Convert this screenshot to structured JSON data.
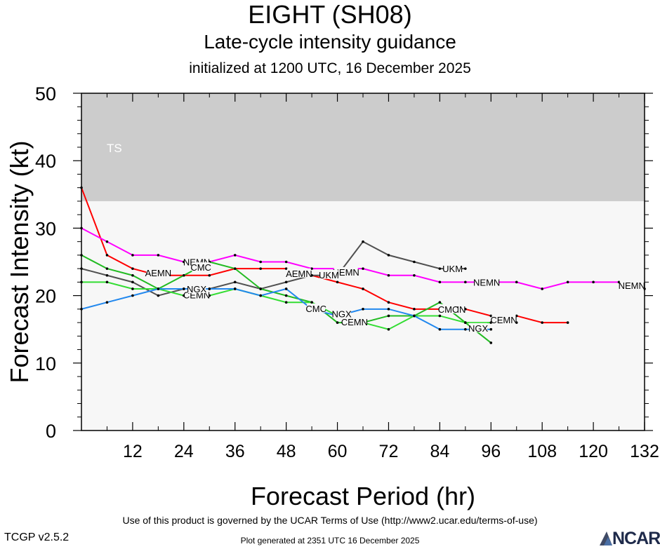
{
  "header": {
    "title": "EIGHT (SH08)",
    "subtitle": "Late-cycle intensity guidance",
    "init_line": "initialized at 1200 UTC, 16 December 2025"
  },
  "footer": {
    "terms": "Use of this product is governed by the UCAR Terms of Use (http://www2.ucar.edu/terms-of-use)",
    "version": "TCGP v2.5.2",
    "generated": "Plot generated at 2351 UTC   16 December 2025",
    "logo_text": "NCAR"
  },
  "chart_data": {
    "type": "line",
    "xlabel": "Forecast Period (hr)",
    "ylabel": "Forecast Intensity (kt)",
    "xlim": [
      0,
      132
    ],
    "ylim": [
      0,
      50
    ],
    "xticks": [
      12,
      24,
      36,
      48,
      60,
      72,
      84,
      96,
      108,
      120,
      132
    ],
    "yticks": [
      0,
      10,
      20,
      30,
      40,
      50
    ],
    "bands": [
      {
        "label": "TS",
        "ymin": 34,
        "ymax": 50,
        "color": "#cccccc"
      }
    ],
    "background_color": "#f7f7f7",
    "series": [
      {
        "name": "AEMN",
        "color": "#ff0000",
        "x": [
          0,
          6,
          12,
          18,
          24,
          30,
          36,
          42,
          48,
          54,
          60,
          66,
          72,
          78,
          84,
          90,
          96,
          102,
          108,
          114
        ],
        "y": [
          36,
          26,
          24,
          23,
          23,
          23,
          24,
          24,
          24,
          23,
          22,
          21,
          19,
          18,
          18,
          18,
          17,
          17,
          16,
          16
        ],
        "labels": [
          {
            "x": 18,
            "y": 23.4
          },
          {
            "x": 51,
            "y": 23.3
          },
          {
            "x": 87,
            "y": 18.0
          }
        ]
      },
      {
        "name": "NEMN",
        "color": "#ff00ff",
        "x": [
          0,
          6,
          12,
          18,
          24,
          30,
          36,
          42,
          48,
          54,
          60,
          66,
          72,
          78,
          84,
          90,
          96,
          102,
          108,
          114,
          120,
          126,
          132
        ],
        "y": [
          30,
          28,
          26,
          26,
          25,
          25,
          26,
          25,
          25,
          24,
          24,
          24,
          23,
          23,
          22,
          22,
          22,
          22,
          21,
          22,
          22,
          22,
          21
        ],
        "labels": [
          {
            "x": 27,
            "y": 25.0
          },
          {
            "x": 62,
            "y": 23.5
          },
          {
            "x": 95,
            "y": 22.0
          },
          {
            "x": 129,
            "y": 21.5
          }
        ]
      },
      {
        "name": "UKM",
        "color": "#505050",
        "x": [
          0,
          6,
          12,
          18,
          24,
          30,
          36,
          42,
          48,
          54,
          60,
          66,
          72,
          78,
          84,
          90
        ],
        "y": [
          24,
          23,
          22,
          20,
          21,
          21,
          22,
          21,
          22,
          23,
          23,
          28,
          26,
          25,
          24,
          24
        ],
        "labels": [
          {
            "x": 58,
            "y": 23.1
          },
          {
            "x": 87,
            "y": 24.0
          }
        ]
      },
      {
        "name": "CMC",
        "color": "#22bb22",
        "x": [
          0,
          6,
          12,
          18,
          24,
          30,
          36,
          42,
          48,
          54,
          60,
          66,
          72,
          78,
          84,
          90,
          96
        ],
        "y": [
          26,
          24,
          23,
          21,
          23,
          25,
          24,
          21,
          20,
          19,
          16,
          16,
          17,
          17,
          19,
          16,
          13
        ],
        "labels": [
          {
            "x": 28,
            "y": 24.2
          },
          {
            "x": 55,
            "y": 18.1
          },
          {
            "x": 86,
            "y": 18.0
          }
        ]
      },
      {
        "name": "CEMN",
        "color": "#33dd33",
        "x": [
          0,
          6,
          12,
          18,
          24,
          30,
          36,
          42,
          48,
          54,
          60,
          66,
          72,
          78,
          84,
          90,
          96,
          102
        ],
        "y": [
          22,
          22,
          21,
          21,
          20,
          20,
          21,
          20,
          19,
          19,
          17,
          16,
          15,
          17,
          17,
          16,
          16,
          16
        ],
        "labels": [
          {
            "x": 27,
            "y": 20.1
          },
          {
            "x": 64,
            "y": 16.1
          },
          {
            "x": 99,
            "y": 16.4
          }
        ]
      },
      {
        "name": "NGX",
        "color": "#2288ee",
        "x": [
          0,
          6,
          12,
          18,
          24,
          30,
          36,
          42,
          48,
          54,
          60,
          66,
          72,
          78,
          84,
          90,
          96
        ],
        "y": [
          18,
          19,
          20,
          21,
          21,
          21,
          21,
          20,
          21,
          18,
          17,
          18,
          18,
          17,
          15,
          15,
          15
        ],
        "labels": [
          {
            "x": 27,
            "y": 21.0
          },
          {
            "x": 61,
            "y": 17.3
          },
          {
            "x": 93,
            "y": 15.2
          }
        ]
      }
    ]
  }
}
